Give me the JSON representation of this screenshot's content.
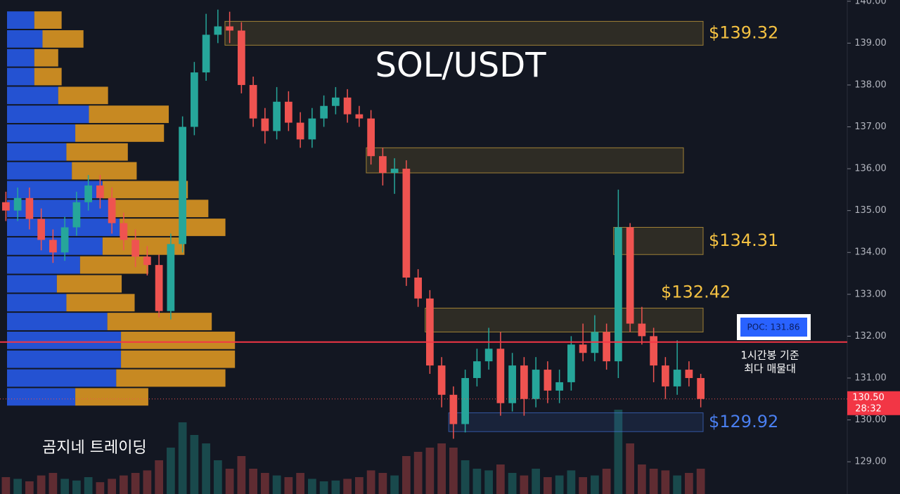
{
  "chart_data": {
    "type": "candlestick",
    "title": "SOL/USDT",
    "watermark": "곰지네 트레이딩",
    "up_color": "#26a69a",
    "down_color": "#ef5350",
    "open": [
      135.2,
      135.0,
      135.3,
      134.8,
      134.3,
      134.0,
      134.6,
      135.2,
      135.6,
      135.3,
      134.7,
      134.3,
      133.9,
      133.7,
      132.6,
      134.2,
      137.0,
      138.3,
      139.2,
      139.4,
      139.3,
      138.0,
      137.2,
      136.9,
      137.6,
      137.1,
      136.7,
      137.2,
      137.5,
      137.7,
      137.3,
      137.2,
      136.3,
      135.9,
      136.0,
      133.4,
      132.9,
      131.3,
      130.6,
      129.9,
      131.0,
      131.4,
      131.7,
      130.4,
      131.3,
      130.5,
      131.2,
      130.7,
      130.9,
      131.8,
      131.6,
      132.1,
      131.4,
      134.6,
      132.3,
      132.0,
      131.3,
      130.8,
      131.2,
      131.0
    ],
    "high": [
      135.45,
      135.55,
      135.55,
      135.05,
      134.55,
      134.85,
      135.45,
      135.85,
      135.85,
      135.55,
      134.95,
      134.55,
      134.15,
      133.95,
      134.45,
      137.25,
      138.55,
      139.7,
      139.8,
      139.75,
      139.5,
      138.2,
      137.45,
      137.95,
      137.85,
      137.35,
      137.45,
      137.75,
      137.95,
      137.9,
      137.5,
      137.4,
      136.5,
      136.25,
      136.2,
      133.6,
      133.1,
      131.5,
      130.8,
      131.2,
      131.7,
      132.2,
      132.1,
      131.6,
      131.5,
      131.5,
      131.4,
      131.2,
      132.0,
      132.3,
      132.5,
      132.3,
      135.5,
      134.7,
      132.7,
      132.2,
      131.5,
      131.9,
      131.4,
      131.1
    ],
    "low": [
      134.75,
      134.75,
      134.55,
      134.05,
      133.75,
      133.8,
      134.4,
      135.0,
      135.05,
      134.45,
      134.05,
      133.65,
      133.45,
      132.45,
      132.4,
      134.0,
      136.8,
      138.1,
      139.0,
      139.0,
      137.8,
      137.0,
      136.6,
      136.7,
      136.9,
      136.5,
      136.5,
      137.0,
      137.3,
      137.1,
      137.0,
      136.1,
      135.6,
      135.4,
      133.2,
      132.7,
      131.1,
      130.3,
      129.55,
      129.7,
      130.8,
      131.2,
      130.1,
      130.2,
      130.1,
      130.3,
      130.4,
      130.4,
      130.7,
      131.4,
      131.4,
      131.2,
      131.0,
      132.1,
      131.8,
      130.9,
      130.5,
      130.6,
      130.8,
      130.3
    ],
    "close": [
      135.0,
      135.3,
      134.8,
      134.3,
      134.0,
      134.6,
      135.2,
      135.6,
      135.3,
      134.7,
      134.3,
      133.9,
      133.7,
      132.6,
      134.2,
      137.0,
      138.3,
      139.2,
      139.4,
      139.3,
      138.0,
      137.2,
      136.9,
      137.6,
      137.1,
      136.7,
      137.2,
      137.5,
      137.7,
      137.3,
      137.2,
      136.3,
      135.9,
      136.0,
      133.4,
      132.9,
      131.3,
      130.6,
      129.9,
      131.0,
      131.4,
      131.7,
      130.4,
      131.3,
      130.5,
      131.2,
      130.7,
      130.9,
      131.8,
      131.6,
      132.1,
      131.4,
      134.6,
      132.3,
      132.0,
      131.3,
      130.8,
      131.2,
      131.0,
      130.5
    ],
    "volume": [
      20,
      18,
      15,
      22,
      25,
      18,
      16,
      20,
      14,
      18,
      22,
      25,
      28,
      40,
      55,
      85,
      70,
      60,
      40,
      30,
      45,
      30,
      25,
      22,
      20,
      25,
      18,
      15,
      16,
      18,
      20,
      28,
      25,
      22,
      45,
      50,
      55,
      60,
      55,
      40,
      30,
      28,
      35,
      25,
      22,
      30,
      20,
      22,
      28,
      20,
      22,
      30,
      100,
      60,
      35,
      30,
      28,
      22,
      25,
      30
    ],
    "volume_lim": [
      0,
      100
    ],
    "volume_profile": {
      "prices": [
        139.55,
        139.1,
        138.65,
        138.2,
        137.75,
        137.3,
        136.85,
        136.4,
        135.95,
        135.5,
        135.05,
        134.6,
        134.15,
        133.7,
        133.25,
        132.8,
        132.35,
        131.9,
        131.45,
        131.0,
        130.55
      ],
      "buy": [
        40,
        52,
        40,
        40,
        75,
        120,
        100,
        87,
        95,
        140,
        150,
        165,
        140,
        107,
        73,
        87,
        147,
        167,
        167,
        160,
        100
      ],
      "sell": [
        40,
        60,
        35,
        40,
        73,
        117,
        130,
        90,
        95,
        125,
        145,
        155,
        120,
        100,
        95,
        100,
        153,
        167,
        167,
        160,
        107
      ],
      "xlim": [
        0,
        340
      ],
      "buy_color": "#2962ff",
      "sell_color": "#f5a623"
    },
    "zones": [
      {
        "low": 138.95,
        "high": 139.52,
        "label": "$139.32",
        "color": "#f5c242"
      },
      {
        "low": 135.9,
        "high": 136.5,
        "color": "#f5c242"
      },
      {
        "low": 133.95,
        "high": 134.6,
        "label": "$134.31",
        "color": "#f5c242"
      },
      {
        "low": 132.1,
        "high": 132.67,
        "label": "$132.42",
        "color": "#f5c242"
      },
      {
        "low": 129.72,
        "high": 130.17,
        "label": "$129.92",
        "color": "#4a7ff0"
      }
    ],
    "poc": {
      "value": 131.86,
      "label": "POC: 131.86",
      "note": [
        "1시간봉 기준",
        "최다 매물대"
      ],
      "color": "#f23645"
    },
    "last_price": {
      "value": 130.5,
      "label": "130.50",
      "timer": "28:32"
    },
    "ylim": [
      128.23,
      140.03
    ],
    "yticks": [
      {
        "value": 129,
        "label": "129.00"
      },
      {
        "value": 130,
        "label": "130.00"
      },
      {
        "value": 131,
        "label": "131.00"
      },
      {
        "value": 132,
        "label": "132.00"
      },
      {
        "value": 133,
        "label": "133.00"
      },
      {
        "value": 134,
        "label": "134.00"
      },
      {
        "value": 135,
        "label": "135.00"
      },
      {
        "value": 136,
        "label": "136.00"
      },
      {
        "value": 137,
        "label": "137.00"
      },
      {
        "value": 138,
        "label": "138.00"
      },
      {
        "value": 139,
        "label": "139.00"
      },
      {
        "value": 140,
        "label": "140.00"
      }
    ],
    "grid": false
  }
}
